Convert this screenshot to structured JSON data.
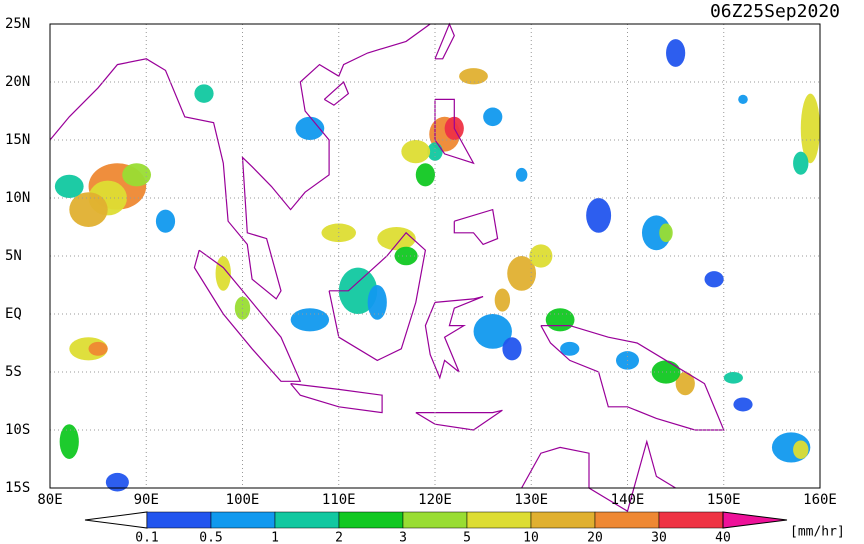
{
  "title": "06Z25Sep2020",
  "lat_labels": [
    "25N",
    "20N",
    "15N",
    "10N",
    "5N",
    "EQ",
    "5S",
    "10S",
    "15S"
  ],
  "lon_labels": [
    "80E",
    "90E",
    "100E",
    "110E",
    "120E",
    "130E",
    "140E",
    "150E",
    "160E"
  ],
  "colorbar": {
    "levels": [
      0.1,
      0.5,
      1,
      2,
      3,
      5,
      10,
      20,
      30,
      40
    ],
    "colors": [
      "#ffffff",
      "#2255ee",
      "#1199ee",
      "#11c8a0",
      "#11c822",
      "#99dd33",
      "#dddd33",
      "#e0b030",
      "#ee8833",
      "#ee3344",
      "#ee1199"
    ],
    "unit": "[mm/hr]"
  }
}
